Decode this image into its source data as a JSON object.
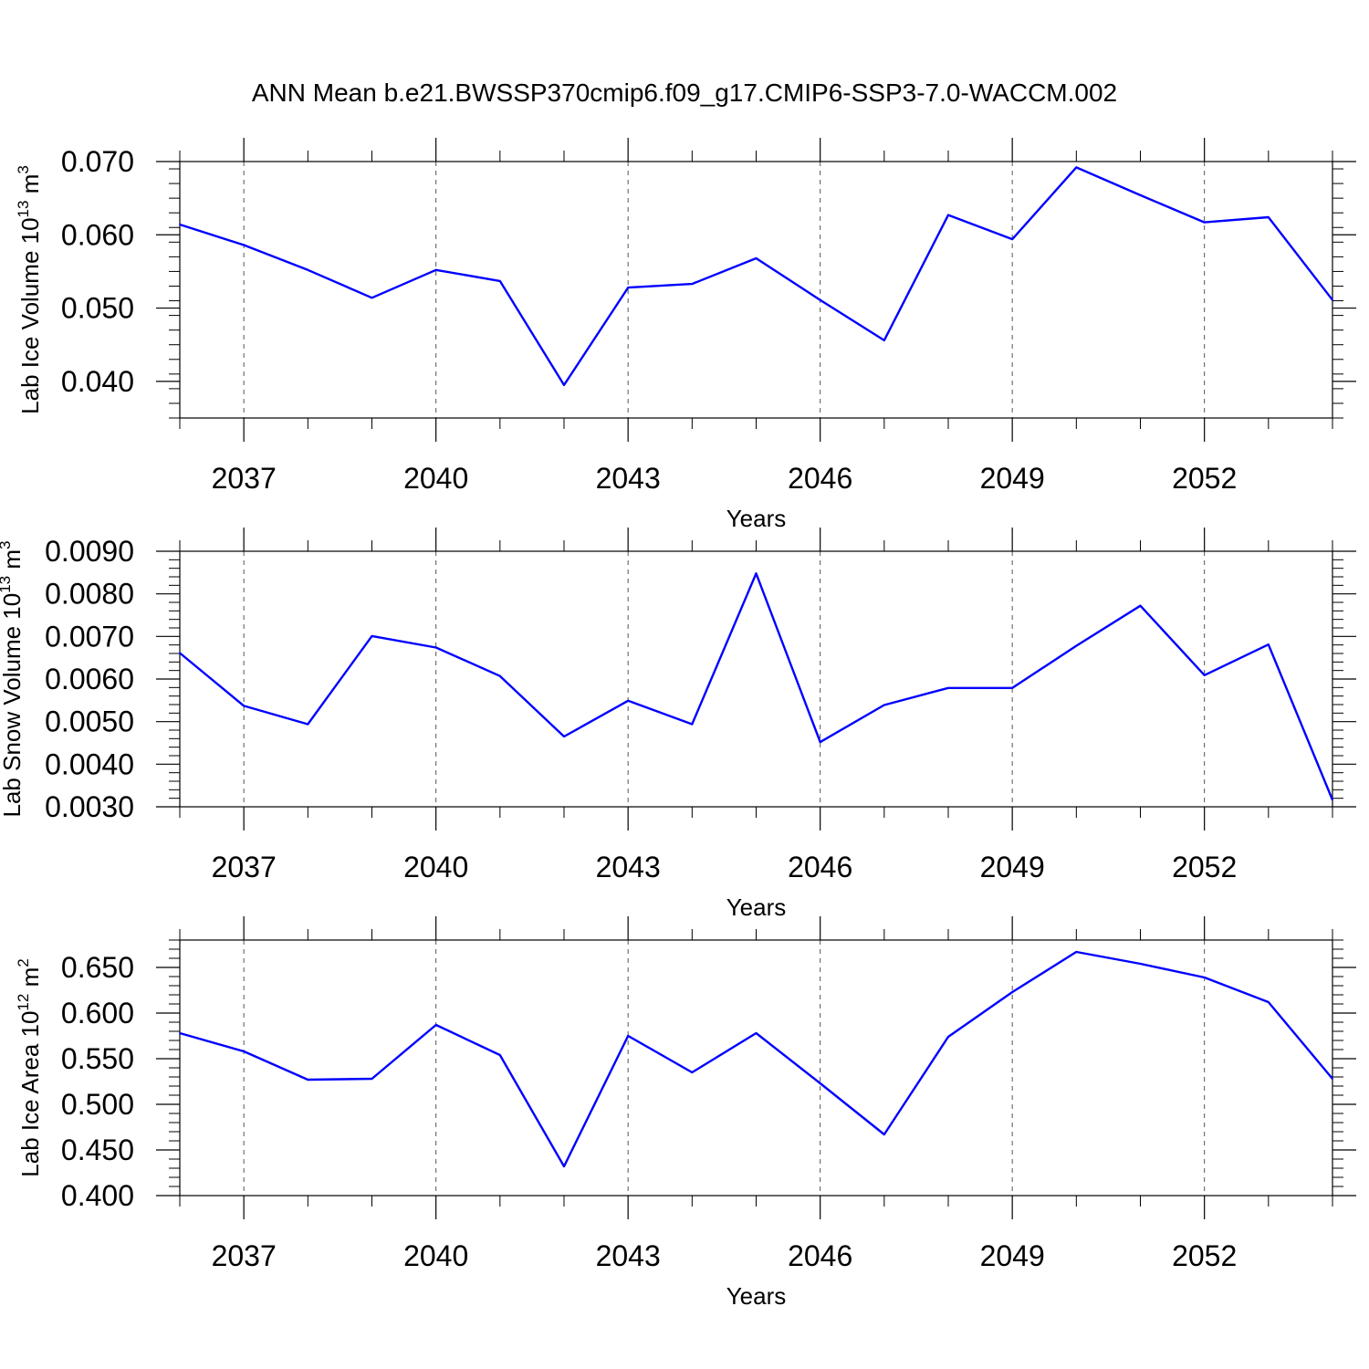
{
  "title": "ANN Mean b.e21.BWSSP370cmip6.f09_g17.CMIP6-SSP3-7.0-WACCM.002",
  "colors": {
    "line": "#0000ff",
    "axis": "#000000",
    "grid": "#555555"
  },
  "chart_data": [
    {
      "type": "line",
      "xlabel": "Years",
      "ylabel": "Lab Ice Volume 10",
      "ylabel_exponent": "13",
      "ylabel_unit": " m",
      "ylabel_unit_exponent": "3",
      "xlim": [
        2036,
        2054
      ],
      "ylim": [
        0.035,
        0.07
      ],
      "xticks": [
        2037,
        2040,
        2043,
        2046,
        2049,
        2052
      ],
      "xtick_labels": [
        "2037",
        "2040",
        "2043",
        "2046",
        "2049",
        "2052"
      ],
      "yticks": [
        0.04,
        0.05,
        0.06,
        0.07
      ],
      "ytick_labels": [
        "0.040",
        "0.050",
        "0.060",
        "0.070"
      ],
      "grid": "vertical dashed at major x ticks",
      "x": [
        2036,
        2037,
        2038,
        2039,
        2040,
        2041,
        2042,
        2043,
        2044,
        2045,
        2046,
        2047,
        2048,
        2049,
        2050,
        2051,
        2052,
        2053,
        2054
      ],
      "values": [
        0.0614,
        0.0586,
        0.0552,
        0.0514,
        0.0552,
        0.0537,
        0.0395,
        0.0528,
        0.0533,
        0.0568,
        0.0511,
        0.0456,
        0.0627,
        0.0594,
        0.0692,
        0.0654,
        0.0617,
        0.0624,
        0.0511
      ]
    },
    {
      "type": "line",
      "xlabel": "Years",
      "ylabel": "Lab Snow Volume 10",
      "ylabel_exponent": "13",
      "ylabel_unit": " m",
      "ylabel_unit_exponent": "3",
      "xlim": [
        2036,
        2054
      ],
      "ylim": [
        0.003,
        0.009
      ],
      "xticks": [
        2037,
        2040,
        2043,
        2046,
        2049,
        2052
      ],
      "xtick_labels": [
        "2037",
        "2040",
        "2043",
        "2046",
        "2049",
        "2052"
      ],
      "yticks": [
        0.003,
        0.004,
        0.005,
        0.006,
        0.007,
        0.008,
        0.009
      ],
      "ytick_labels": [
        "0.0030",
        "0.0040",
        "0.0050",
        "0.0060",
        "0.0070",
        "0.0080",
        "0.0090"
      ],
      "grid": "vertical dashed at major x ticks",
      "x": [
        2036,
        2037,
        2038,
        2039,
        2040,
        2041,
        2042,
        2043,
        2044,
        2045,
        2046,
        2047,
        2048,
        2049,
        2050,
        2051,
        2052,
        2053,
        2054
      ],
      "values": [
        0.00661,
        0.00537,
        0.00494,
        0.00701,
        0.00674,
        0.00607,
        0.00465,
        0.00549,
        0.00494,
        0.00848,
        0.00452,
        0.00539,
        0.00579,
        0.00579,
        0.00678,
        0.00772,
        0.00609,
        0.00681,
        0.00316
      ]
    },
    {
      "type": "line",
      "xlabel": "Years",
      "ylabel": "Lab Ice Area 10",
      "ylabel_exponent": "12",
      "ylabel_unit": " m",
      "ylabel_unit_exponent": "2",
      "xlim": [
        2036,
        2054
      ],
      "ylim": [
        0.4,
        0.68
      ],
      "xticks": [
        2037,
        2040,
        2043,
        2046,
        2049,
        2052
      ],
      "xtick_labels": [
        "2037",
        "2040",
        "2043",
        "2046",
        "2049",
        "2052"
      ],
      "yticks": [
        0.4,
        0.45,
        0.5,
        0.55,
        0.6,
        0.65
      ],
      "ytick_labels": [
        "0.400",
        "0.450",
        "0.500",
        "0.550",
        "0.600",
        "0.650"
      ],
      "grid": "vertical dashed at major x ticks",
      "x": [
        2036,
        2037,
        2038,
        2039,
        2040,
        2041,
        2042,
        2043,
        2044,
        2045,
        2046,
        2047,
        2048,
        2049,
        2050,
        2051,
        2052,
        2053,
        2054
      ],
      "values": [
        0.578,
        0.558,
        0.527,
        0.528,
        0.587,
        0.554,
        0.432,
        0.575,
        0.535,
        0.578,
        0.523,
        0.467,
        0.574,
        0.623,
        0.667,
        0.654,
        0.639,
        0.612,
        0.528
      ]
    }
  ]
}
